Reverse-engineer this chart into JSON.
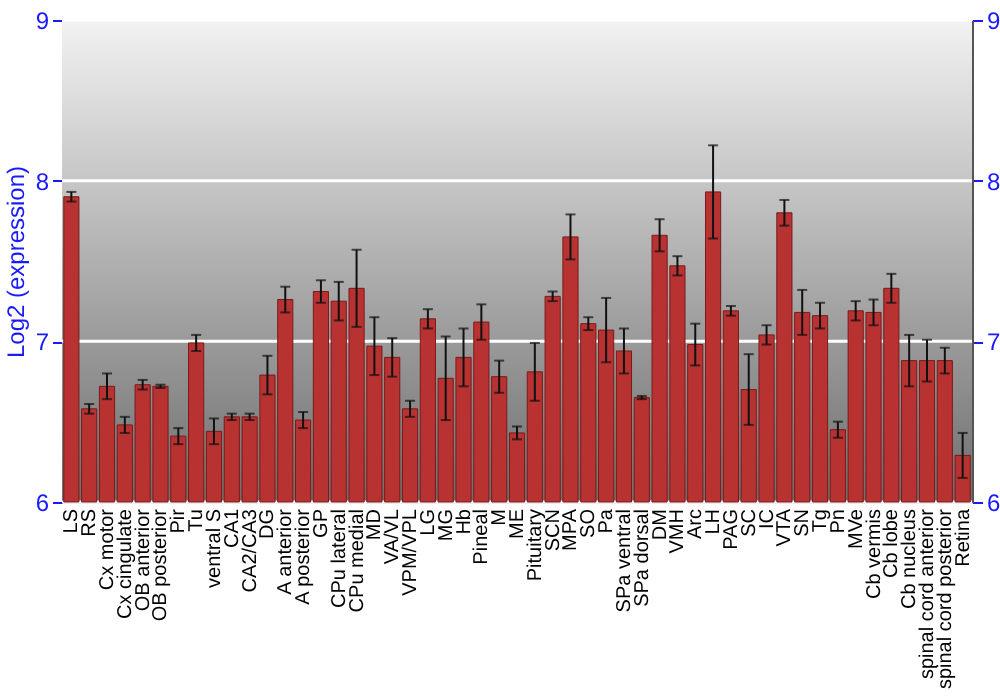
{
  "chart_data": {
    "type": "bar",
    "ylabel": "Log2 (expression)",
    "categories": [
      "LS",
      "RS",
      "Cx motor",
      "Cx cingulate",
      "OB anterior",
      "OB posterior",
      "Pir",
      "Tu",
      "ventral S",
      "CA1",
      "CA2/CA3",
      "DG",
      "A anterior",
      "A posterior",
      "GP",
      "CPu lateral",
      "CPu medial",
      "MD",
      "VA/VL",
      "VPM/VPL",
      "LG",
      "MG",
      "Hb",
      "Pineal",
      "M",
      "ME",
      "Pituitary",
      "SCN",
      "MPA",
      "SO",
      "Pa",
      "SPa ventral",
      "SPa dorsal",
      "DM",
      "VMH",
      "Arc",
      "LH",
      "PAG",
      "SC",
      "IC",
      "VTA",
      "SN",
      "Tg",
      "Pn",
      "MVe",
      "Cb vermis",
      "Cb lobe",
      "Cb nucleus",
      "spinal cord anterior",
      "spinal cord posterior",
      "Retina"
    ],
    "values": [
      7.9,
      6.58,
      6.72,
      6.48,
      6.73,
      6.72,
      6.41,
      6.99,
      6.44,
      6.53,
      6.53,
      6.79,
      7.26,
      6.51,
      7.31,
      7.25,
      7.33,
      6.97,
      6.9,
      6.58,
      7.14,
      6.77,
      6.9,
      7.12,
      6.78,
      6.43,
      6.81,
      7.28,
      7.65,
      7.11,
      7.07,
      6.94,
      6.65,
      7.66,
      7.47,
      6.98,
      7.93,
      7.19,
      6.7,
      7.04,
      7.8,
      7.18,
      7.16,
      6.45,
      7.19,
      7.18,
      7.33,
      6.88,
      6.88,
      6.88,
      6.29
    ],
    "errors": [
      0.03,
      0.03,
      0.08,
      0.05,
      0.03,
      0.01,
      0.05,
      0.05,
      0.08,
      0.02,
      0.02,
      0.12,
      0.08,
      0.05,
      0.07,
      0.12,
      0.24,
      0.18,
      0.12,
      0.05,
      0.06,
      0.26,
      0.18,
      0.11,
      0.1,
      0.04,
      0.18,
      0.03,
      0.14,
      0.04,
      0.2,
      0.14,
      0.01,
      0.1,
      0.06,
      0.13,
      0.29,
      0.03,
      0.22,
      0.06,
      0.08,
      0.14,
      0.08,
      0.05,
      0.06,
      0.08,
      0.09,
      0.16,
      0.13,
      0.08,
      0.14
    ],
    "color": "#b83232",
    "ylim": [
      6,
      9
    ],
    "yticks": [
      6,
      7,
      8,
      9
    ],
    "y2lim": [
      6,
      9
    ],
    "y2ticks": [
      6,
      7,
      8,
      9
    ],
    "grid": "y"
  }
}
